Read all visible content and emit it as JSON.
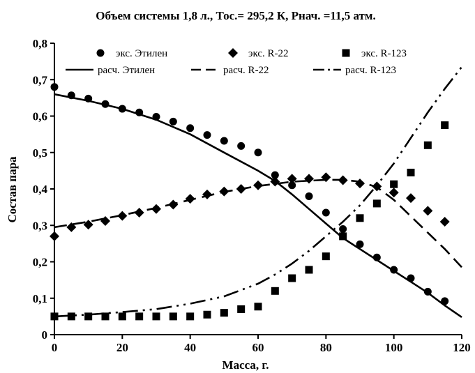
{
  "chart_data": {
    "type": "line",
    "title": "Объем системы 1,8 л.,   Тос.= 295,2 К,    Рнач. =11,5 атм.",
    "xlabel": "Масса, г.",
    "ylabel": "Состав пара",
    "xlim": [
      0,
      120
    ],
    "ylim": [
      0,
      0.8
    ],
    "xticks": [
      "0",
      "20",
      "40",
      "60",
      "80",
      "100",
      "120"
    ],
    "yticks": [
      "0",
      "0,1",
      "0,2",
      "0,3",
      "0,4",
      "0,5",
      "0,6",
      "0,7",
      "0,8"
    ],
    "grid": false,
    "legend_position": "top",
    "series": [
      {
        "name": "экс. Этилен",
        "kind": "scatter",
        "marker": "circle",
        "x": [
          0,
          5,
          10,
          15,
          20,
          25,
          30,
          35,
          40,
          45,
          50,
          55,
          60,
          65,
          70,
          75,
          80,
          85,
          90,
          95,
          100,
          105,
          110,
          115
        ],
        "y": [
          0.68,
          0.657,
          0.648,
          0.633,
          0.62,
          0.61,
          0.598,
          0.585,
          0.567,
          0.548,
          0.532,
          0.518,
          0.5,
          0.438,
          0.41,
          0.38,
          0.335,
          0.29,
          0.248,
          0.212,
          0.178,
          0.155,
          0.118,
          0.092
        ]
      },
      {
        "name": "экс. R-22",
        "kind": "scatter",
        "marker": "diamond",
        "x": [
          0,
          5,
          10,
          15,
          20,
          25,
          30,
          35,
          40,
          45,
          50,
          55,
          60,
          65,
          70,
          75,
          80,
          85,
          90,
          95,
          100,
          105,
          110,
          115
        ],
        "y": [
          0.27,
          0.295,
          0.302,
          0.312,
          0.326,
          0.335,
          0.345,
          0.357,
          0.373,
          0.385,
          0.393,
          0.4,
          0.41,
          0.42,
          0.428,
          0.428,
          0.432,
          0.424,
          0.415,
          0.407,
          0.39,
          0.375,
          0.34,
          0.31
        ]
      },
      {
        "name": "экс. R-123",
        "kind": "scatter",
        "marker": "square",
        "x": [
          0,
          5,
          10,
          15,
          20,
          25,
          30,
          35,
          40,
          45,
          50,
          55,
          60,
          65,
          70,
          75,
          80,
          85,
          90,
          95,
          100,
          105,
          110,
          115
        ],
        "y": [
          0.05,
          0.05,
          0.05,
          0.05,
          0.05,
          0.05,
          0.05,
          0.05,
          0.05,
          0.055,
          0.06,
          0.07,
          0.077,
          0.12,
          0.155,
          0.178,
          0.215,
          0.27,
          0.32,
          0.36,
          0.413,
          0.445,
          0.52,
          0.575
        ]
      },
      {
        "name": "расч. Этилен",
        "kind": "line",
        "dash": "solid",
        "x": [
          0,
          10,
          20,
          30,
          40,
          50,
          60,
          65,
          70,
          75,
          80,
          85,
          90,
          95,
          100,
          105,
          110,
          115,
          120
        ],
        "y": [
          0.66,
          0.642,
          0.62,
          0.59,
          0.55,
          0.5,
          0.45,
          0.422,
          0.385,
          0.345,
          0.305,
          0.265,
          0.235,
          0.205,
          0.175,
          0.145,
          0.115,
          0.08,
          0.048
        ]
      },
      {
        "name": "расч. R-22",
        "kind": "line",
        "dash": "dash",
        "x": [
          0,
          10,
          20,
          30,
          40,
          50,
          60,
          70,
          80,
          85,
          90,
          95,
          100,
          105,
          110,
          115,
          120
        ],
        "y": [
          0.295,
          0.31,
          0.328,
          0.348,
          0.37,
          0.392,
          0.408,
          0.42,
          0.425,
          0.425,
          0.42,
          0.405,
          0.37,
          0.325,
          0.28,
          0.235,
          0.185
        ]
      },
      {
        "name": "расч. R-123",
        "kind": "line",
        "dash": "dashdotdot",
        "x": [
          0,
          10,
          20,
          30,
          40,
          50,
          60,
          65,
          70,
          75,
          80,
          85,
          90,
          95,
          100,
          105,
          110,
          115,
          120
        ],
        "y": [
          0.05,
          0.055,
          0.062,
          0.07,
          0.085,
          0.105,
          0.14,
          0.165,
          0.195,
          0.23,
          0.27,
          0.31,
          0.355,
          0.41,
          0.47,
          0.54,
          0.61,
          0.675,
          0.735
        ]
      }
    ]
  }
}
